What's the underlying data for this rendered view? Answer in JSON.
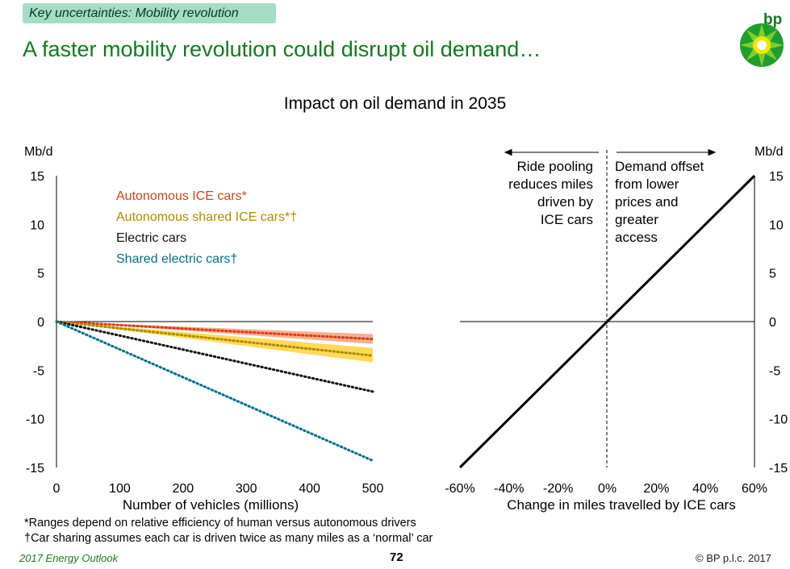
{
  "header": {
    "tag": "Key uncertainties: Mobility revolution",
    "headline": "A faster mobility revolution could disrupt oil demand…",
    "logo_text": "bp"
  },
  "colors": {
    "brand_green": "#127a1e",
    "tag_bg": "#a6dcc6"
  },
  "chart_data": [
    {
      "type": "line",
      "title": "Impact on oil demand in 2035",
      "ylabel": "Mb/d",
      "xlabel": "Number of vehicles (millions)",
      "xlim": [
        0,
        500
      ],
      "ylim": [
        -15,
        15
      ],
      "x_ticks": [
        "0",
        "100",
        "200",
        "300",
        "400",
        "500"
      ],
      "y_ticks": [
        "15",
        "10",
        "5",
        "0",
        "-5",
        "-10",
        "-15"
      ],
      "legend_placement": "top-left",
      "series": [
        {
          "name": "Autonomous ICE cars*",
          "color": "#d43f1a",
          "band_color": "#f7a07a",
          "x": [
            0,
            500
          ],
          "y": [
            0,
            -1.8
          ],
          "band_low": [
            0,
            -2.3
          ],
          "band_high": [
            0,
            -1.3
          ]
        },
        {
          "name": "Autonomous shared ICE cars*†",
          "color": "#b08a00",
          "band_color": "#ffd43b",
          "x": [
            0,
            500
          ],
          "y": [
            0,
            -3.5
          ],
          "band_low": [
            0,
            -4.2
          ],
          "band_high": [
            0,
            -2.7
          ]
        },
        {
          "name": "Electric cars",
          "color": "#111111",
          "x": [
            0,
            500
          ],
          "y": [
            0,
            -7.2
          ]
        },
        {
          "name": "Shared electric cars†",
          "color": "#00708a",
          "x": [
            0,
            500
          ],
          "y": [
            0,
            -14.3
          ]
        }
      ]
    },
    {
      "type": "line",
      "ylabel": "Mb/d",
      "xlabel": "Change in miles travelled by ICE cars",
      "xlim": [
        -60,
        60
      ],
      "ylim": [
        -15,
        15
      ],
      "x_ticks": [
        "-60%",
        "-40%",
        "-20%",
        "0%",
        "20%",
        "40%",
        "60%"
      ],
      "y_ticks": [
        "15",
        "10",
        "5",
        "0",
        "-5",
        "-10",
        "-15"
      ],
      "series": [
        {
          "x": [
            -60,
            60
          ],
          "y": [
            -15,
            15
          ]
        }
      ],
      "annotations": {
        "left_lines": [
          "Ride pooling",
          "reduces miles",
          "driven by",
          "ICE cars"
        ],
        "right_lines": [
          "Demand offset",
          "from lower",
          "prices and",
          "greater",
          "access"
        ]
      }
    }
  ],
  "footnotes": [
    "*Ranges depend on relative efficiency of human versus autonomous drivers",
    "†Car sharing assumes each car is driven twice as many miles as a ‘normal’ car"
  ],
  "footer": {
    "source": "2017 Energy Outlook",
    "page": "72",
    "copyright": "© BP p.l.c. 2017"
  }
}
